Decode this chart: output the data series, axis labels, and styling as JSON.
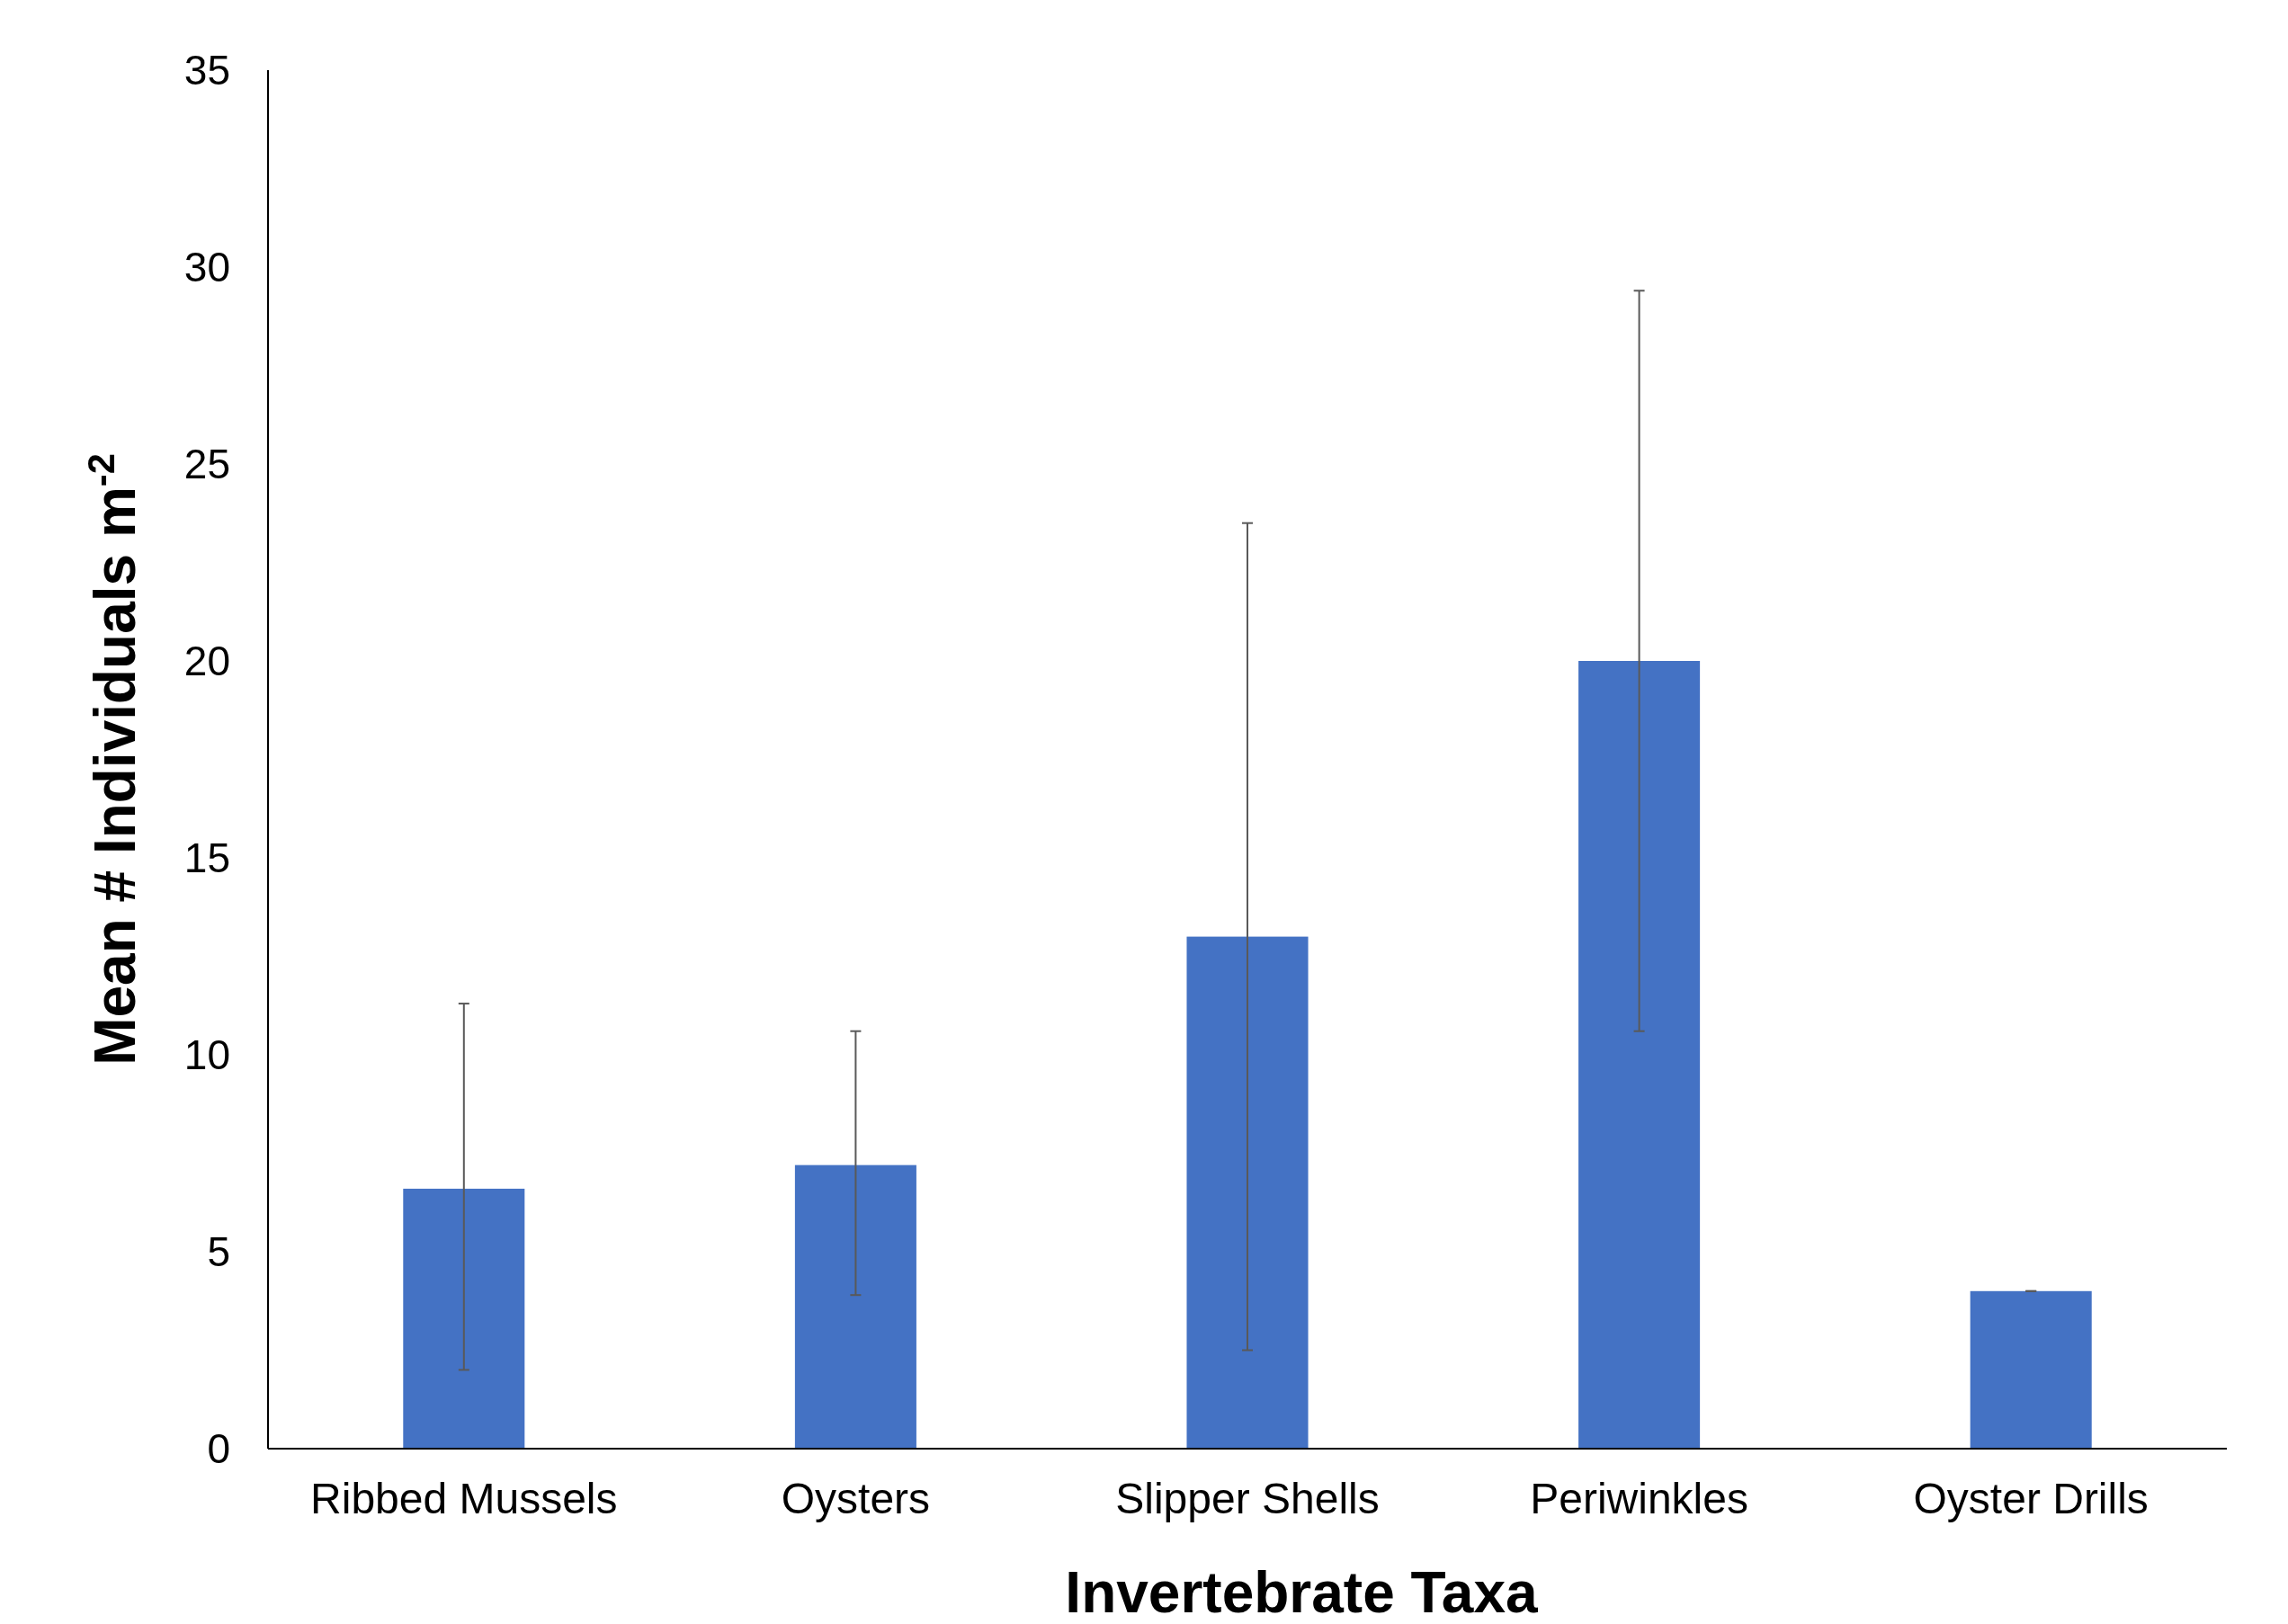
{
  "chart_data": {
    "type": "bar",
    "xlabel": "Invertebrate Taxa",
    "ylabel": "Mean # Individuals m$^{-2}$",
    "categories": [
      "Ribbed Mussels",
      "Oysters",
      "Slipper Shells",
      "Periwinkles",
      "Oyster Drills"
    ],
    "values": [
      6.6,
      7.2,
      13.0,
      20.0,
      4.0
    ],
    "errors": [
      [
        2.0,
        11.3
      ],
      [
        3.9,
        10.6
      ],
      [
        2.5,
        23.5
      ],
      [
        10.6,
        29.4
      ],
      [
        4.0,
        4.0
      ]
    ],
    "color": "#4472c4",
    "ylim": [
      0,
      35
    ],
    "yticks": [
      0,
      5,
      10,
      15,
      20,
      25,
      30,
      35
    ],
    "grid": false
  }
}
